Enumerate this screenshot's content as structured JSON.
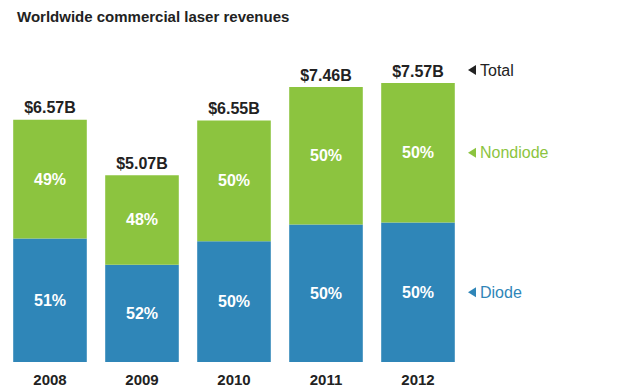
{
  "chart_data": {
    "type": "bar",
    "title": "Worldwide commercial laser revenues",
    "categories": [
      "2008",
      "2009",
      "2010",
      "2011",
      "2012"
    ],
    "stacked": true,
    "data_labels": true,
    "tick_labels": "x",
    "totals": {
      "name": "Total",
      "values": [
        6.57,
        5.07,
        6.55,
        7.46,
        7.57
      ],
      "value_labels": [
        "$6.57B",
        "$5.07B",
        "$6.55B",
        "$7.46B",
        "$7.57B"
      ]
    },
    "series": [
      {
        "name": "Diode",
        "color": "#2f86b8",
        "values": [
          51,
          52,
          50,
          50,
          50
        ],
        "value_labels": [
          "51%",
          "52%",
          "50%",
          "50%",
          "50%"
        ]
      },
      {
        "name": "Nondiode",
        "color": "#8cc43f",
        "values": [
          49,
          48,
          50,
          50,
          50
        ],
        "value_labels": [
          "49%",
          "48%",
          "50%",
          "50%",
          "50%"
        ]
      }
    ]
  }
}
